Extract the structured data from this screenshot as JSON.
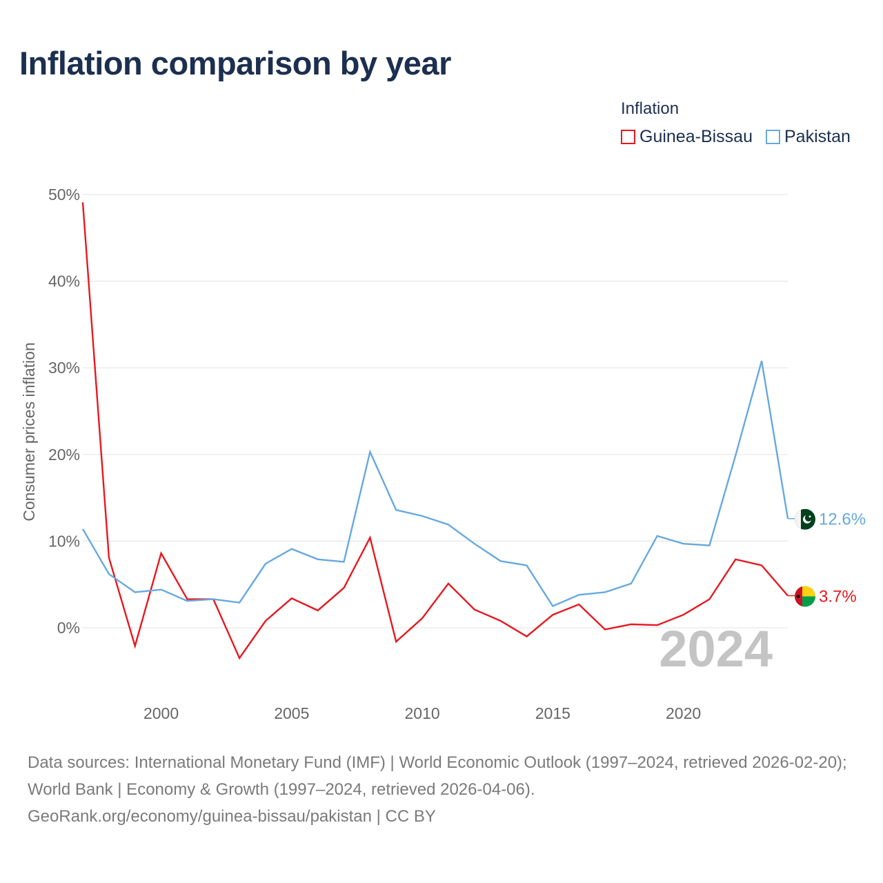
{
  "chart_data": {
    "type": "line",
    "title": "Inflation comparison by year",
    "legend_title": "Inflation",
    "ylabel": "Consumer prices inflation",
    "xlabel": "",
    "xlim": [
      1997,
      2024
    ],
    "ylim": [
      -8,
      52
    ],
    "y_ticks": [
      0,
      10,
      20,
      30,
      40,
      50
    ],
    "y_tick_labels": [
      "0%",
      "10%",
      "20%",
      "30%",
      "40%",
      "50%"
    ],
    "x_ticks": [
      2000,
      2005,
      2010,
      2015,
      2020
    ],
    "x_tick_labels": [
      "2000",
      "2005",
      "2010",
      "2015",
      "2020"
    ],
    "year_watermark": "2024",
    "grid": true,
    "x": [
      1997,
      1998,
      1999,
      2000,
      2001,
      2002,
      2003,
      2004,
      2005,
      2006,
      2007,
      2008,
      2009,
      2010,
      2011,
      2012,
      2013,
      2014,
      2015,
      2016,
      2017,
      2018,
      2019,
      2020,
      2021,
      2022,
      2023,
      2024
    ],
    "series": [
      {
        "name": "Guinea-Bissau",
        "color": "#e8171e",
        "end_label": "3.7%",
        "flag_icon": "guinea-bissau-flag-icon",
        "values": [
          49.1,
          8.1,
          -2.1,
          8.6,
          3.3,
          3.3,
          -3.5,
          0.8,
          3.4,
          2.0,
          4.6,
          10.4,
          -1.6,
          1.1,
          5.1,
          2.1,
          0.8,
          -1.0,
          1.5,
          2.7,
          -0.2,
          0.4,
          0.3,
          1.5,
          3.3,
          7.9,
          7.2,
          3.7
        ]
      },
      {
        "name": "Pakistan",
        "color": "#66a8e0",
        "end_label": "12.6%",
        "flag_icon": "pakistan-flag-icon",
        "values": [
          11.4,
          6.2,
          4.1,
          4.4,
          3.1,
          3.3,
          2.9,
          7.4,
          9.1,
          7.9,
          7.6,
          20.3,
          13.6,
          12.9,
          11.9,
          9.7,
          7.7,
          7.2,
          2.5,
          3.8,
          4.1,
          5.1,
          10.6,
          9.7,
          9.5,
          19.9,
          30.8,
          12.6
        ]
      }
    ]
  },
  "footer": {
    "sources": "Data sources: International Monetary Fund (IMF) | World Economic Outlook (1997–2024, retrieved 2026-02-20); World Bank | Economy & Growth (1997–2024, retrieved 2026-04-06).",
    "attribution": "GeoRank.org/economy/guinea-bissau/pakistan | CC BY"
  }
}
